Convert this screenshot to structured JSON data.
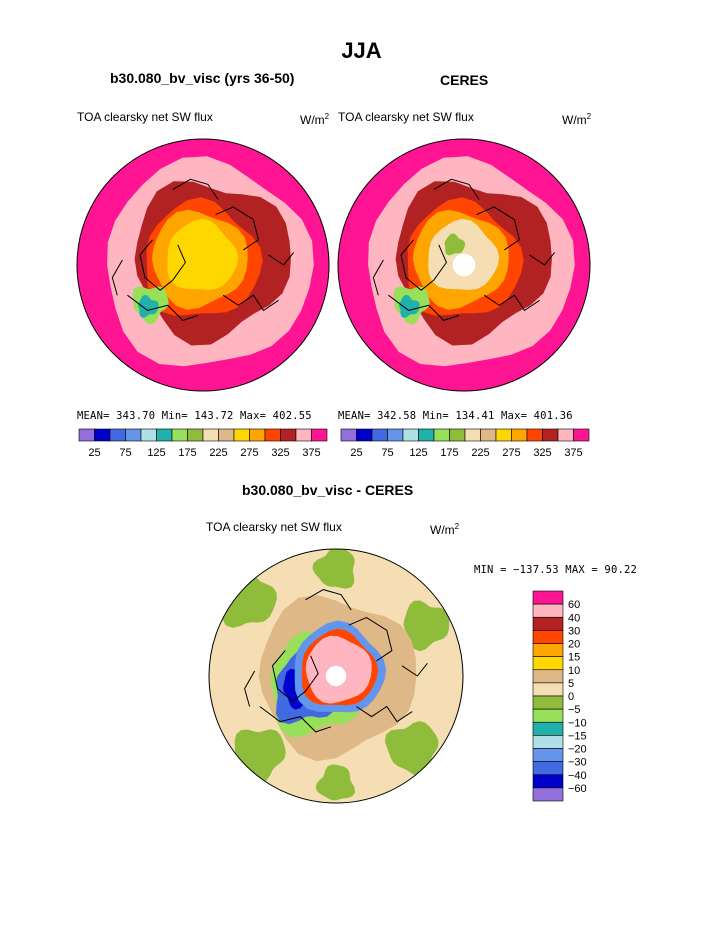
{
  "page_title": "JJA",
  "panels": {
    "model": {
      "title": "b30.080_bv_visc (yrs 36-50)",
      "field": "TOA clearsky net SW flux",
      "units": "W/m",
      "units_sup": "2",
      "stats": "MEAN= 343.70   Min= 143.72   Max= 402.55"
    },
    "obs": {
      "title": "CERES",
      "field": "TOA clearsky net SW flux",
      "units": "W/m",
      "units_sup": "2",
      "stats": "MEAN= 342.58   Min= 134.41   Max= 401.36"
    },
    "diff": {
      "title": "b30.080_bv_visc - CERES",
      "field": "TOA clearsky net SW flux",
      "units": "W/m",
      "units_sup": "2",
      "stats": "MIN = −137.53  MAX =   90.22"
    }
  },
  "colorbar_top": {
    "colors": [
      "#9370db",
      "#0000cd",
      "#4169e1",
      "#6495ed",
      "#b0e0e6",
      "#20b2aa",
      "#98e05a",
      "#8fbc3a",
      "#f5deb3",
      "#deb887",
      "#ffd700",
      "#ffa500",
      "#ff4500",
      "#b22222",
      "#ffb6c1",
      "#ff1493"
    ],
    "labels": [
      "25",
      "75",
      "125",
      "175",
      "225",
      "275",
      "325",
      "375"
    ]
  },
  "colorbar_diff": {
    "colors": [
      "#ff1493",
      "#ffb6c1",
      "#b22222",
      "#ff4500",
      "#ffa500",
      "#ffd700",
      "#deb887",
      "#f5deb3",
      "#8fbc3a",
      "#98e05a",
      "#20b2aa",
      "#b0e0e6",
      "#6495ed",
      "#4169e1",
      "#0000cd",
      "#9370db"
    ],
    "labels": [
      "60",
      "40",
      "30",
      "20",
      "15",
      "10",
      "5",
      "0",
      "−5",
      "−10",
      "−15",
      "−20",
      "−30",
      "−40",
      "−60"
    ]
  }
}
